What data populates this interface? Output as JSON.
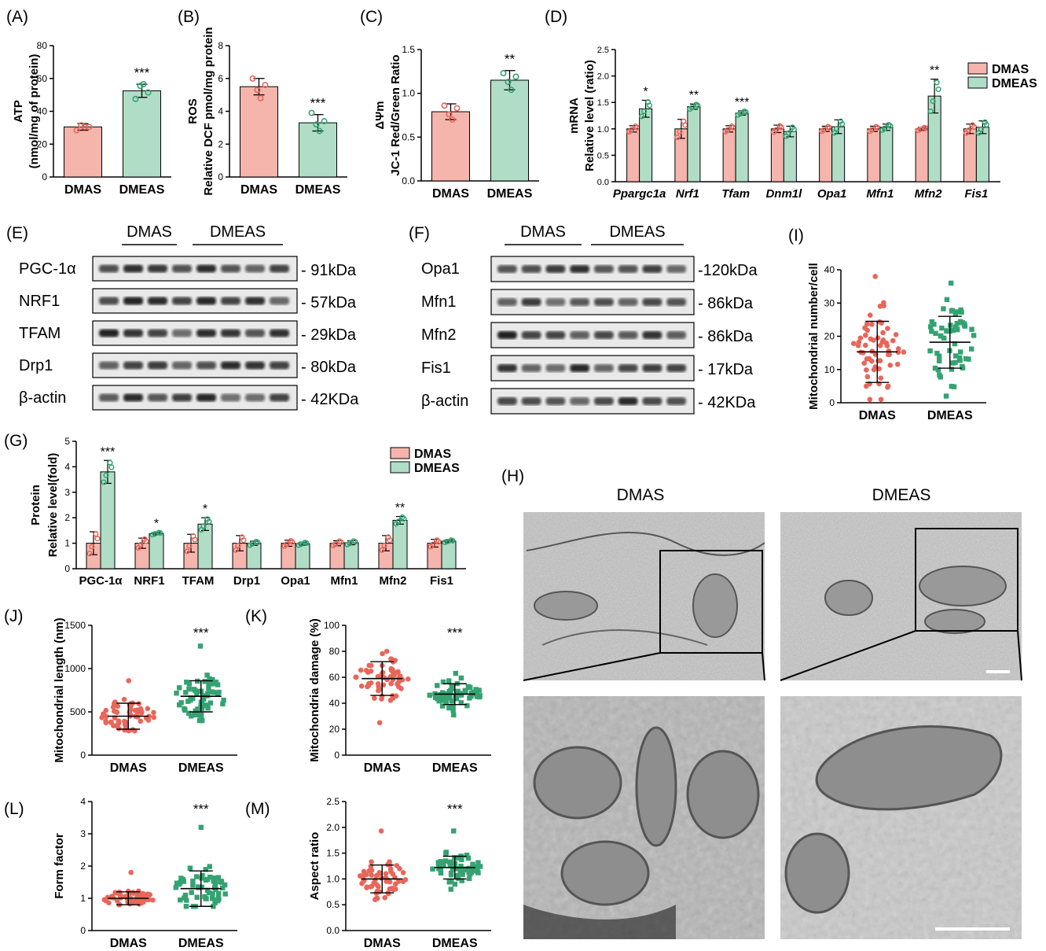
{
  "colors": {
    "pink": "#F5B5AC",
    "pink_dot": "#E8665A",
    "green": "#B0DDC6",
    "green_dot": "#34A272",
    "axis": "#000000",
    "em_bg": "#a7a7a7"
  },
  "chart_data": [
    {
      "panel": "(A)",
      "type": "bar",
      "categories": [
        "DMAS",
        "DMEAS"
      ],
      "values": [
        30.5,
        52.5
      ],
      "errors": [
        2,
        4
      ],
      "points": [
        [
          28.5,
          30.5,
          31.5,
          30.5
        ],
        [
          47.5,
          51.5,
          55.5,
          56.5
        ]
      ],
      "sig": [
        "",
        "***"
      ],
      "ylabel": "ATP",
      "ylabel2": "(nmol/mg of protein)",
      "ylim": [
        0,
        80
      ],
      "yticks": [
        "0",
        "20",
        "40",
        "60",
        "80"
      ]
    },
    {
      "panel": "(B)",
      "type": "bar",
      "categories": [
        "DMAS",
        "DMEAS"
      ],
      "values": [
        5.5,
        3.3
      ],
      "errors": [
        0.5,
        0.5
      ],
      "points": [
        [
          6.0,
          5.6,
          5.3,
          4.8
        ],
        [
          3.9,
          3.4,
          3.2,
          2.8
        ]
      ],
      "sig": [
        "",
        "***"
      ],
      "ylabel": "ROS",
      "ylabel2": "Relative DCF pmol/mg protein",
      "ylim": [
        0,
        8
      ],
      "yticks": [
        "0",
        "2",
        "4",
        "6",
        "8"
      ]
    },
    {
      "panel": "(C)",
      "type": "bar",
      "categories": [
        "DMAS",
        "DMEAS"
      ],
      "values": [
        0.79,
        1.15
      ],
      "errors": [
        0.09,
        0.11
      ],
      "points": [
        [
          0.86,
          0.83,
          0.76,
          0.7
        ],
        [
          1.23,
          1.19,
          1.13,
          1.04
        ]
      ],
      "sig": [
        "",
        "**"
      ],
      "ylabel": "ΔΨm",
      "ylabel2": "JC-1 Red/Green Ratio",
      "ylim": [
        0,
        1.5
      ],
      "yticks": [
        "0.0",
        "0.5",
        "1.0",
        "1.5"
      ]
    },
    {
      "panel": "(D)",
      "type": "bar",
      "categories": [
        "Ppargc1a",
        "Nrf1",
        "Tfam",
        "Dnm1l",
        "Opa1",
        "Mfn1",
        "Mfn2",
        "Fis1"
      ],
      "series": [
        {
          "name": "DMAS",
          "values": [
            1.0,
            1.0,
            1.0,
            1.0,
            1.0,
            1.0,
            1.0,
            1.0
          ],
          "errors": [
            0.06,
            0.18,
            0.06,
            0.07,
            0.05,
            0.05,
            0.03,
            0.09
          ]
        },
        {
          "name": "DMEAS",
          "values": [
            1.38,
            1.42,
            1.3,
            0.95,
            1.04,
            1.03,
            1.62,
            1.03
          ],
          "errors": [
            0.16,
            0.05,
            0.04,
            0.1,
            0.13,
            0.06,
            0.32,
            0.12
          ]
        }
      ],
      "sig": [
        "*",
        "**",
        "***",
        "",
        "",
        "",
        "**",
        ""
      ],
      "ylabel": "mRNA",
      "ylabel2": "Relative level (ratio)",
      "ylim": [
        0,
        2.5
      ],
      "yticks": [
        "0.0",
        "0.5",
        "1.0",
        "1.5",
        "2.0",
        "2.5"
      ]
    },
    {
      "panel": "(G)",
      "type": "bar",
      "categories": [
        "PGC-1α",
        "NRF1",
        "TFAM",
        "Drp1",
        "Opa1",
        "Mfn1",
        "Mfn2",
        "Fis1"
      ],
      "series": [
        {
          "name": "DMAS",
          "values": [
            1.0,
            1.0,
            1.0,
            1.0,
            1.0,
            1.0,
            1.0,
            1.0
          ],
          "errors": [
            0.45,
            0.2,
            0.35,
            0.3,
            0.12,
            0.1,
            0.3,
            0.15
          ]
        },
        {
          "name": "DMEAS",
          "values": [
            3.8,
            1.38,
            1.75,
            1.0,
            0.98,
            1.02,
            1.9,
            1.08
          ],
          "errors": [
            0.45,
            0.05,
            0.25,
            0.08,
            0.06,
            0.08,
            0.15,
            0.05
          ]
        }
      ],
      "sig": [
        "***",
        "*",
        "*",
        "",
        "",
        "",
        "**",
        ""
      ],
      "ylabel": "Protein",
      "ylabel2": "Relative level(fold)",
      "ylim": [
        0,
        5
      ],
      "yticks": [
        "0",
        "1",
        "2",
        "3",
        "4",
        "5"
      ]
    },
    {
      "panel": "(I)",
      "type": "scatter",
      "categories": [
        "DMAS",
        "DMEAS"
      ],
      "means": [
        15.3,
        18.2
      ],
      "sds": [
        9.2,
        7.8
      ],
      "n": 60,
      "ranges": [
        [
          1,
          38
        ],
        [
          2,
          36
        ]
      ],
      "ylabel": "Mitochondrial number/cell",
      "ylim": [
        0,
        40
      ],
      "yticks": [
        "0",
        "10",
        "20",
        "30",
        "40"
      ]
    },
    {
      "panel": "(J)",
      "type": "scatter",
      "categories": [
        "DMAS",
        "DMEAS"
      ],
      "means": [
        450,
        680
      ],
      "sds": [
        150,
        180
      ],
      "n": 60,
      "ranges": [
        [
          280,
          860
        ],
        [
          400,
          1260
        ]
      ],
      "sig": [
        "",
        "***"
      ],
      "ylabel": "Mitochondrial length (nm)",
      "ylim": [
        0,
        1500
      ],
      "yticks": [
        "0",
        "500",
        "1000",
        "1500"
      ]
    },
    {
      "panel": "(K)",
      "type": "scatter",
      "categories": [
        "DMAS",
        "DMEAS"
      ],
      "means": [
        59,
        47
      ],
      "sds": [
        13,
        8
      ],
      "n": 60,
      "ranges": [
        [
          25,
          80
        ],
        [
          31,
          63
        ]
      ],
      "sig": [
        "",
        "***"
      ],
      "ylabel": "Mitochondria damage (%)",
      "ylim": [
        0,
        100
      ],
      "yticks": [
        "0",
        "20",
        "40",
        "60",
        "80",
        "100"
      ]
    },
    {
      "panel": "(L)",
      "type": "scatter",
      "categories": [
        "DMAS",
        "DMEAS"
      ],
      "means": [
        1.0,
        1.3
      ],
      "sds": [
        0.2,
        0.55
      ],
      "n": 60,
      "ranges": [
        [
          0.8,
          1.8
        ],
        [
          0.75,
          3.2
        ]
      ],
      "sig": [
        "",
        "***"
      ],
      "ylabel": "Form factor",
      "ylim": [
        0,
        4
      ],
      "yticks": [
        "0",
        "1",
        "2",
        "3",
        "4"
      ]
    },
    {
      "panel": "(M)",
      "type": "scatter",
      "categories": [
        "DMAS",
        "DMEAS"
      ],
      "means": [
        1.0,
        1.22
      ],
      "sds": [
        0.27,
        0.22
      ],
      "n": 60,
      "ranges": [
        [
          0.6,
          1.93
        ],
        [
          0.8,
          1.93
        ]
      ],
      "sig": [
        "",
        "***"
      ],
      "ylabel": "Aspect ratio",
      "ylim": [
        0,
        2.5
      ],
      "yticks": [
        "0.0",
        "0.5",
        "1.0",
        "1.5",
        "2.0",
        "2.5"
      ]
    }
  ],
  "legend": {
    "dmas": "DMAS",
    "dmeas": "DMEAS"
  },
  "blots": {
    "E": {
      "panel": "(E)",
      "group1": "DMAS",
      "group2": "DMEAS",
      "rows": [
        {
          "protein": "PGC-1α",
          "size": "91kDa",
          "prefix": "- "
        },
        {
          "protein": "NRF1",
          "size": "57kDa",
          "prefix": "- "
        },
        {
          "protein": "TFAM",
          "size": "29kDa",
          "prefix": "- "
        },
        {
          "protein": "Drp1",
          "size": "80kDa",
          "prefix": "- "
        },
        {
          "protein": "β-actin",
          "size": "42KDa",
          "prefix": "- "
        }
      ]
    },
    "F": {
      "panel": "(F)",
      "group1": "DMAS",
      "group2": "DMEAS",
      "rows": [
        {
          "protein": "Opa1",
          "size": "120kDa",
          "prefix": "-"
        },
        {
          "protein": "Mfn1",
          "size": "86kDa",
          "prefix": "- "
        },
        {
          "protein": "Mfn2",
          "size": "86kDa",
          "prefix": "- "
        },
        {
          "protein": "Fis1",
          "size": "17kDa",
          "prefix": "- "
        },
        {
          "protein": "β-actin",
          "size": "42KDa",
          "prefix": "- "
        }
      ]
    }
  },
  "em": {
    "panel": "(H)",
    "left_label": "DMAS",
    "right_label": "DMEAS"
  }
}
